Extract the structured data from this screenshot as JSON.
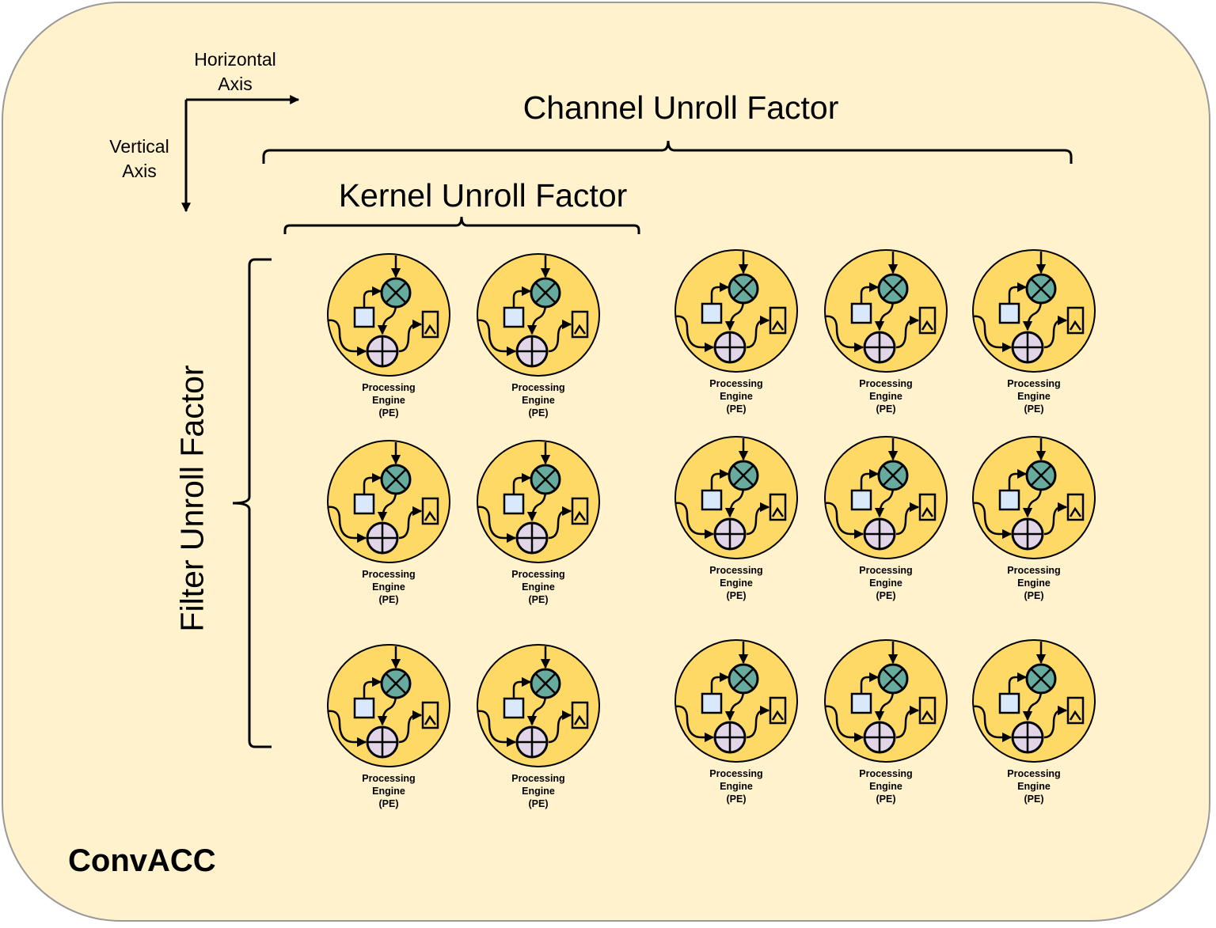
{
  "diagram": {
    "container_label": "ConvACC",
    "axes": {
      "horizontal": [
        "Horizontal",
        "Axis"
      ],
      "vertical": [
        "Vertical",
        "Axis"
      ]
    },
    "braces": {
      "channel": "Channel Unroll Factor",
      "kernel": "Kernel Unroll Factor",
      "filter": "Filter Unroll Factor"
    },
    "pe_label": [
      "Processing",
      "Engine",
      "(PE)"
    ],
    "colors": {
      "background": "#fff2cc",
      "pe_fill": "#ffd966",
      "multiplier_fill": "#67ab9f",
      "adder_fill": "#e1d5e7",
      "register_fill": "#dae8fc",
      "output_fill": "#ffd966"
    },
    "icons": {
      "multiplier": "multiply-circle-icon",
      "adder": "add-circle-icon",
      "register": "register-square-icon",
      "output": "output-buffer-icon"
    }
  }
}
